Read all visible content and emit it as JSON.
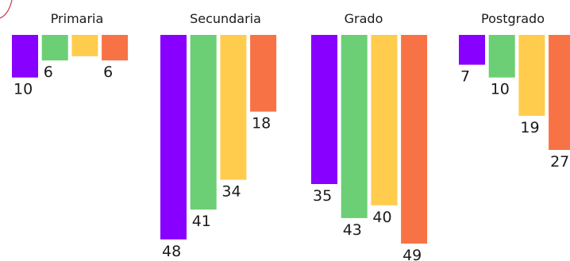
{
  "chart_data": {
    "type": "bar",
    "title": "",
    "xlabel": "",
    "ylabel": "",
    "orientation": "downward",
    "ylim": [
      0,
      50
    ],
    "grid": false,
    "legend": "none",
    "categories": [
      "Primaria",
      "Secundaria",
      "Grado",
      "Postgrado"
    ],
    "series": [
      {
        "values": [
          10,
          48,
          35,
          7
        ]
      },
      {
        "values": [
          6,
          41,
          43,
          10
        ]
      },
      {
        "values": [
          5,
          34,
          40,
          19
        ]
      },
      {
        "values": [
          6,
          18,
          49,
          27
        ]
      }
    ],
    "data_labels": [
      [
        "10",
        "48",
        "35",
        "7"
      ],
      [
        "6",
        "41",
        "43",
        "10"
      ],
      [
        "",
        "34",
        "40",
        "19"
      ],
      [
        "6",
        "18",
        "49",
        "27"
      ]
    ],
    "colors": [
      "#8800ff",
      "#6ccf75",
      "#ffcc4d",
      "#f77346"
    ]
  }
}
